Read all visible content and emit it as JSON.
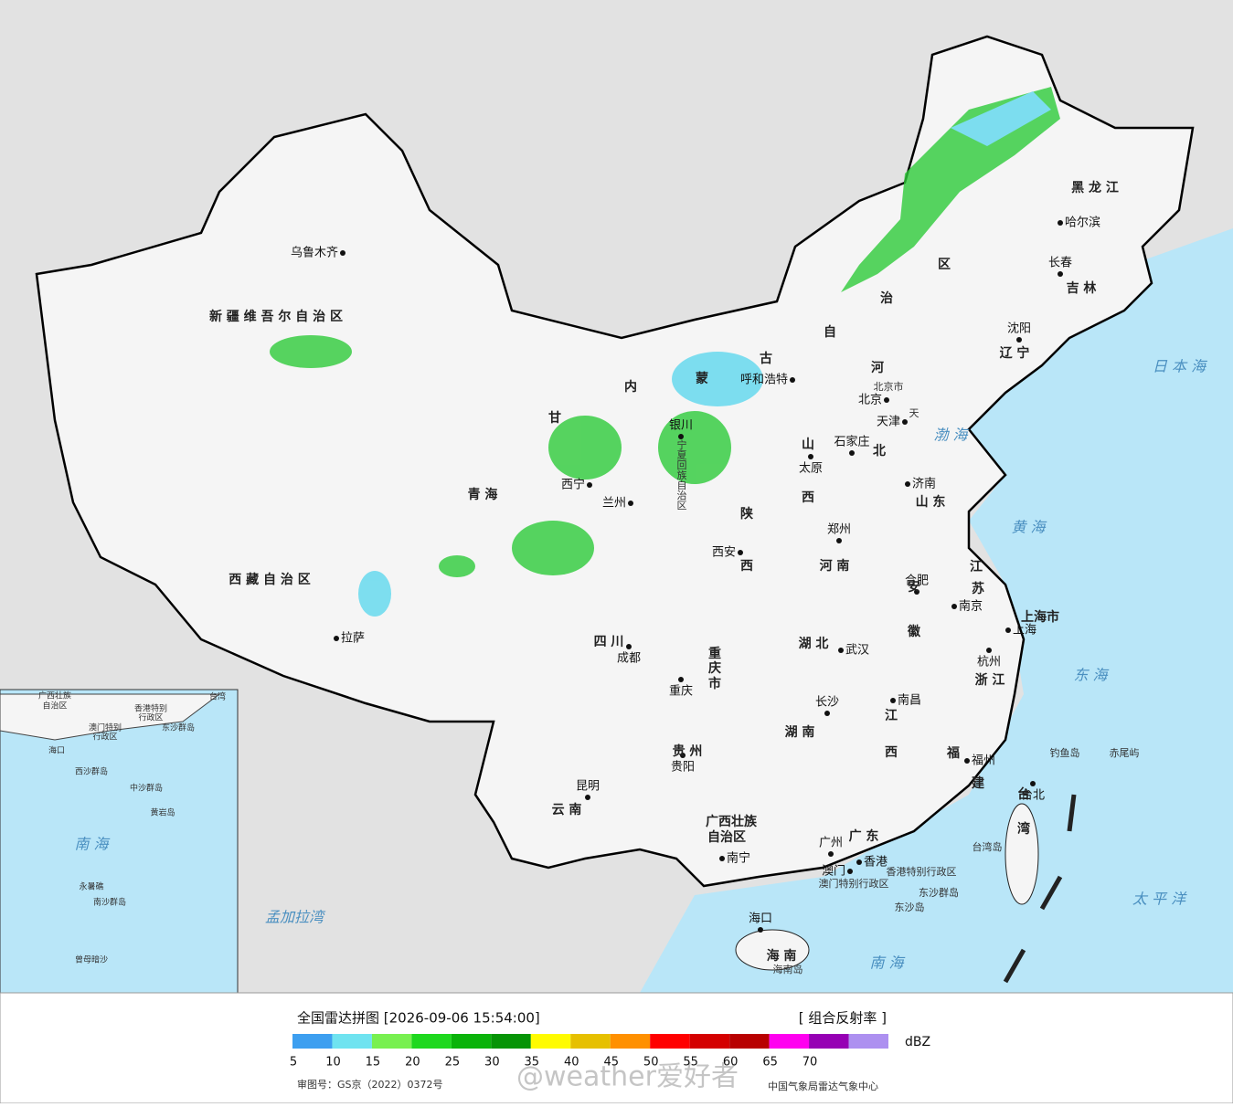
{
  "map": {
    "cities": [
      "乌鲁木齐",
      "拉萨",
      "西宁",
      "兰州",
      "银川",
      "呼和浩特",
      "北京",
      "天津",
      "石家庄",
      "太原",
      "济南",
      "郑州",
      "西安",
      "成都",
      "重庆",
      "武汉",
      "合肥",
      "南京",
      "上海",
      "杭州",
      "长沙",
      "南昌",
      "福州",
      "贵阳",
      "昆明",
      "南宁",
      "广州",
      "香港",
      "澳门",
      "海口",
      "台北",
      "哈尔滨",
      "长春",
      "沈阳"
    ],
    "regions": [
      "新 疆 维 吾 尔 自 治 区",
      "西 藏 自 治 区",
      "青 海",
      "甘",
      "内",
      "蒙",
      "古",
      "自",
      "治",
      "区",
      "黑 龙 江",
      "吉 林",
      "辽 宁",
      "河",
      "北",
      "山",
      "西",
      "陕",
      "西",
      "河 南",
      "山 东",
      "江",
      "苏",
      "安",
      "徽",
      "上海市",
      "浙 江",
      "湖 北",
      "四 川",
      "重",
      "庆",
      "市",
      "贵 州",
      "湖 南",
      "江",
      "西",
      "福",
      "建",
      "云 南",
      "广西壮族",
      "自治区",
      "广 东",
      "海 南",
      "台",
      "湾",
      "北京市",
      "天",
      "宁夏回族自治区"
    ],
    "seas": [
      "日 本 海",
      "渤 海",
      "黄 海",
      "东 海",
      "太 平 洋",
      "南 海",
      "孟加拉湾"
    ],
    "islands": [
      "钓鱼岛",
      "赤尾屿",
      "台湾岛",
      "东沙群岛",
      "东沙岛",
      "海南岛",
      "香港特别行政区",
      "澳门特别行政区"
    ],
    "inset": [
      "广西壮族",
      "自治区",
      "海口",
      "南 海",
      "西沙群岛",
      "中沙群岛",
      "黄岩岛",
      "南沙群岛",
      "永暑礁",
      "曾母暗沙",
      "台湾",
      "香港特别",
      "行政区",
      "澳门特别",
      "行政区",
      "东沙群岛"
    ]
  },
  "legend": {
    "title": "全国雷达拼图 [2026-09-06 15:54:00]",
    "product": "[ 组合反射率 ]",
    "unit": "dBZ",
    "colors": [
      "#3d9ff0",
      "#6fe3f0",
      "#78f050",
      "#1ed81e",
      "#0ab30a",
      "#069406",
      "#fffb00",
      "#e6c000",
      "#ff9000",
      "#ff0000",
      "#d40000",
      "#b80000",
      "#ff00f0",
      "#9600b4",
      "#ad90f0"
    ],
    "ticks": [
      5,
      10,
      15,
      20,
      25,
      30,
      35,
      40,
      45,
      50,
      55,
      60,
      65,
      70
    ]
  },
  "watermark": "@weather爱好者",
  "footer": {
    "approval": "审图号：GS京（2022）0372号",
    "source": "中国气象局雷达气象中心"
  }
}
